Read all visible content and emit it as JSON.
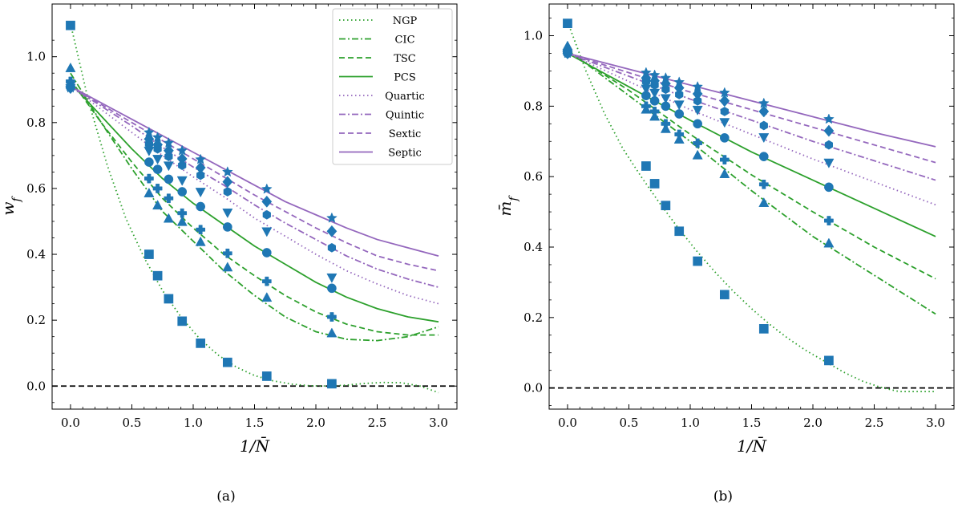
{
  "chart_data": [
    {
      "type": "line",
      "panel": "a",
      "caption": "(a)",
      "xlabel": "1/N̄",
      "ylabel": "w_f",
      "ylabel_main": "w",
      "ylabel_sub": "f",
      "xlim": [
        -0.15,
        3.15
      ],
      "ylim": [
        -0.07,
        1.16
      ],
      "xticks": [
        0.0,
        0.5,
        1.0,
        1.5,
        2.0,
        2.5,
        3.0
      ],
      "xtick_labels": [
        "0.0",
        "0.5",
        "1.0",
        "1.5",
        "2.0",
        "2.5",
        "3.0"
      ],
      "yticks": [
        0.0,
        0.2,
        0.4,
        0.6,
        0.8,
        1.0
      ],
      "ytick_labels": [
        "0.0",
        "0.2",
        "0.4",
        "0.6",
        "0.8",
        "1.0"
      ],
      "reference_line": {
        "y": 0.0,
        "style": "dashed",
        "color": "#000000"
      },
      "legend": {
        "location": "top-right"
      },
      "series": [
        {
          "name": "NGP",
          "color": "#2ca02c",
          "dash": "dotted",
          "marker": "square",
          "fit_x": [
            0,
            0.15,
            0.3,
            0.45,
            0.6,
            0.75,
            0.9,
            1.05,
            1.2,
            1.35,
            1.5,
            1.65,
            1.8,
            1.95,
            2.1,
            2.25,
            2.4,
            2.55,
            2.7,
            2.85,
            3.0
          ],
          "fit_y": [
            1.1,
            0.86,
            0.67,
            0.51,
            0.39,
            0.29,
            0.21,
            0.145,
            0.095,
            0.058,
            0.032,
            0.016,
            0.006,
            0.001,
            0.0,
            0.003,
            0.008,
            0.011,
            0.01,
            0.0,
            -0.02
          ],
          "points_x": [
            0,
            0.64,
            0.71,
            0.8,
            0.91,
            1.06,
            1.28,
            1.6,
            2.13
          ],
          "points_y": [
            1.095,
            0.4,
            0.335,
            0.265,
            0.197,
            0.13,
            0.072,
            0.03,
            0.007
          ]
        },
        {
          "name": "CIC",
          "color": "#2ca02c",
          "dash": "dashdot",
          "marker": "triangle-up",
          "fit_x": [
            0,
            0.25,
            0.5,
            0.75,
            1.0,
            1.25,
            1.5,
            1.75,
            2.0,
            2.25,
            2.5,
            2.75,
            3.0
          ],
          "fit_y": [
            0.95,
            0.8,
            0.66,
            0.53,
            0.44,
            0.35,
            0.275,
            0.21,
            0.165,
            0.142,
            0.138,
            0.15,
            0.18
          ],
          "points_x": [
            0,
            0.64,
            0.71,
            0.8,
            0.91,
            1.06,
            1.28,
            1.6,
            2.13
          ],
          "points_y": [
            0.965,
            0.585,
            0.548,
            0.508,
            0.498,
            0.437,
            0.36,
            0.268,
            0.16
          ]
        },
        {
          "name": "TSC",
          "color": "#2ca02c",
          "dash": "dashed",
          "marker": "plus",
          "fit_x": [
            0,
            0.25,
            0.5,
            0.75,
            1.0,
            1.25,
            1.5,
            1.75,
            2.0,
            2.25,
            2.5,
            2.75,
            3.0
          ],
          "fit_y": [
            0.93,
            0.8,
            0.68,
            0.57,
            0.48,
            0.4,
            0.335,
            0.275,
            0.225,
            0.188,
            0.165,
            0.155,
            0.155
          ],
          "points_x": [
            0,
            0.64,
            0.71,
            0.8,
            0.91,
            1.06,
            1.28,
            1.6,
            2.13
          ],
          "points_y": [
            0.925,
            0.63,
            0.6,
            0.57,
            0.525,
            0.475,
            0.403,
            0.318,
            0.21
          ]
        },
        {
          "name": "PCS",
          "color": "#2ca02c",
          "dash": "solid",
          "marker": "circle",
          "fit_x": [
            0,
            0.25,
            0.5,
            0.75,
            1.0,
            1.25,
            1.5,
            1.75,
            2.0,
            2.25,
            2.5,
            2.75,
            3.0
          ],
          "fit_y": [
            0.92,
            0.82,
            0.72,
            0.63,
            0.555,
            0.49,
            0.425,
            0.37,
            0.315,
            0.27,
            0.235,
            0.21,
            0.195
          ],
          "points_x": [
            0,
            0.64,
            0.71,
            0.8,
            0.91,
            1.06,
            1.28,
            1.6,
            2.13
          ],
          "points_y": [
            0.91,
            0.68,
            0.658,
            0.628,
            0.59,
            0.545,
            0.483,
            0.405,
            0.297
          ]
        },
        {
          "name": "Quartic",
          "color": "#9467bd",
          "dash": "dotted",
          "marker": "triangle-down",
          "fit_x": [
            0,
            0.25,
            0.5,
            0.75,
            1.0,
            1.25,
            1.5,
            1.75,
            2.0,
            2.25,
            2.5,
            2.75,
            3.0
          ],
          "fit_y": [
            0.91,
            0.84,
            0.77,
            0.7,
            0.635,
            0.575,
            0.51,
            0.455,
            0.4,
            0.35,
            0.31,
            0.275,
            0.25
          ],
          "points_x": [
            0,
            0.64,
            0.71,
            0.8,
            0.91,
            1.06,
            1.28,
            1.6,
            2.13
          ],
          "points_y": [
            0.905,
            0.715,
            0.69,
            0.67,
            0.625,
            0.59,
            0.527,
            0.47,
            0.33
          ]
        },
        {
          "name": "Quintic",
          "color": "#9467bd",
          "dash": "dashdot",
          "marker": "hexagon",
          "fit_x": [
            0,
            0.25,
            0.5,
            0.75,
            1.0,
            1.25,
            1.5,
            1.75,
            2.0,
            2.25,
            2.5,
            2.75,
            3.0
          ],
          "fit_y": [
            0.91,
            0.85,
            0.79,
            0.725,
            0.665,
            0.61,
            0.55,
            0.495,
            0.445,
            0.395,
            0.355,
            0.325,
            0.3
          ],
          "points_x": [
            0,
            0.64,
            0.71,
            0.8,
            0.91,
            1.06,
            1.28,
            1.6,
            2.13
          ],
          "points_y": [
            0.905,
            0.735,
            0.72,
            0.697,
            0.67,
            0.64,
            0.59,
            0.52,
            0.42
          ]
        },
        {
          "name": "Sextic",
          "color": "#9467bd",
          "dash": "dashed",
          "marker": "diamond",
          "fit_x": [
            0,
            0.25,
            0.5,
            0.75,
            1.0,
            1.25,
            1.5,
            1.75,
            2.0,
            2.25,
            2.5,
            2.75,
            3.0
          ],
          "fit_y": [
            0.91,
            0.855,
            0.8,
            0.745,
            0.69,
            0.635,
            0.58,
            0.53,
            0.48,
            0.435,
            0.395,
            0.37,
            0.35
          ],
          "points_x": [
            0,
            0.64,
            0.71,
            0.8,
            0.91,
            1.06,
            1.28,
            1.6,
            2.13
          ],
          "points_y": [
            0.905,
            0.75,
            0.733,
            0.715,
            0.69,
            0.663,
            0.62,
            0.56,
            0.47
          ]
        },
        {
          "name": "Septic",
          "color": "#9467bd",
          "dash": "solid",
          "marker": "star",
          "fit_x": [
            0,
            0.25,
            0.5,
            0.75,
            1.0,
            1.25,
            1.5,
            1.75,
            2.0,
            2.25,
            2.5,
            2.75,
            3.0
          ],
          "fit_y": [
            0.91,
            0.86,
            0.81,
            0.76,
            0.71,
            0.66,
            0.61,
            0.56,
            0.52,
            0.48,
            0.445,
            0.42,
            0.395
          ],
          "points_x": [
            0,
            0.64,
            0.71,
            0.8,
            0.91,
            1.06,
            1.28,
            1.6,
            2.13
          ],
          "points_y": [
            0.905,
            0.77,
            0.755,
            0.738,
            0.715,
            0.688,
            0.65,
            0.598,
            0.51
          ]
        }
      ]
    },
    {
      "type": "line",
      "panel": "b",
      "caption": "(b)",
      "xlabel": "1/N̄",
      "ylabel": "m̄_f",
      "ylabel_main": "m̄",
      "ylabel_sub": "f",
      "xlim": [
        -0.15,
        3.15
      ],
      "ylim": [
        -0.06,
        1.09
      ],
      "xticks": [
        0.0,
        0.5,
        1.0,
        1.5,
        2.0,
        2.5,
        3.0
      ],
      "xtick_labels": [
        "0.0",
        "0.5",
        "1.0",
        "1.5",
        "2.0",
        "2.5",
        "3.0"
      ],
      "yticks": [
        0.0,
        0.2,
        0.4,
        0.6,
        0.8,
        1.0
      ],
      "ytick_labels": [
        "0.0",
        "0.2",
        "0.4",
        "0.6",
        "0.8",
        "1.0"
      ],
      "reference_line": {
        "y": 0.0,
        "style": "dashed",
        "color": "#000000"
      },
      "series": [
        {
          "name": "NGP",
          "color": "#2ca02c",
          "dash": "dotted",
          "marker": "square",
          "fit_x": [
            0,
            0.15,
            0.3,
            0.45,
            0.6,
            0.75,
            0.9,
            1.05,
            1.2,
            1.35,
            1.5,
            1.65,
            1.8,
            1.95,
            2.1,
            2.25,
            2.4,
            2.55,
            2.7,
            2.85,
            3.0
          ],
          "fit_y": [
            1.04,
            0.9,
            0.78,
            0.68,
            0.6,
            0.525,
            0.455,
            0.39,
            0.33,
            0.275,
            0.225,
            0.18,
            0.14,
            0.105,
            0.075,
            0.045,
            0.02,
            0.002,
            -0.01,
            -0.01,
            -0.01
          ],
          "points_x": [
            0,
            0.64,
            0.71,
            0.8,
            0.91,
            1.06,
            1.28,
            1.6,
            2.13
          ],
          "points_y": [
            1.035,
            0.63,
            0.58,
            0.518,
            0.445,
            0.36,
            0.265,
            0.168,
            0.078
          ]
        },
        {
          "name": "CIC",
          "color": "#2ca02c",
          "dash": "dashdot",
          "marker": "triangle-up",
          "fit_x": [
            0,
            0.5,
            1.0,
            1.5,
            2.0,
            2.5,
            3.0
          ],
          "fit_y": [
            0.96,
            0.83,
            0.7,
            0.56,
            0.43,
            0.32,
            0.21
          ],
          "points_x": [
            0,
            0.64,
            0.71,
            0.8,
            0.91,
            1.06,
            1.28,
            1.6,
            2.13
          ],
          "points_y": [
            0.97,
            0.79,
            0.77,
            0.735,
            0.705,
            0.66,
            0.607,
            0.525,
            0.41
          ]
        },
        {
          "name": "TSC",
          "color": "#2ca02c",
          "dash": "dashed",
          "marker": "plus",
          "fit_x": [
            0,
            0.5,
            1.0,
            1.5,
            2.0,
            2.5,
            3.0
          ],
          "fit_y": [
            0.955,
            0.845,
            0.72,
            0.605,
            0.5,
            0.4,
            0.31
          ],
          "points_x": [
            0,
            0.64,
            0.71,
            0.8,
            0.91,
            1.06,
            1.28,
            1.6,
            2.13
          ],
          "points_y": [
            0.955,
            0.8,
            0.785,
            0.75,
            0.72,
            0.695,
            0.648,
            0.578,
            0.475
          ]
        },
        {
          "name": "PCS",
          "color": "#2ca02c",
          "dash": "solid",
          "marker": "circle",
          "fit_x": [
            0,
            0.5,
            1.0,
            1.5,
            2.0,
            2.5,
            3.0
          ],
          "fit_y": [
            0.95,
            0.855,
            0.76,
            0.67,
            0.59,
            0.51,
            0.43
          ],
          "points_x": [
            0,
            0.64,
            0.71,
            0.8,
            0.91,
            1.06,
            1.28,
            1.6,
            2.13
          ],
          "points_y": [
            0.95,
            0.83,
            0.815,
            0.8,
            0.778,
            0.75,
            0.71,
            0.657,
            0.57
          ]
        },
        {
          "name": "Quartic",
          "color": "#9467bd",
          "dash": "dotted",
          "marker": "triangle-down",
          "fit_x": [
            0,
            0.5,
            1.0,
            1.5,
            2.0,
            2.5,
            3.0
          ],
          "fit_y": [
            0.95,
            0.87,
            0.79,
            0.72,
            0.65,
            0.585,
            0.52
          ],
          "points_x": [
            0,
            0.64,
            0.71,
            0.8,
            0.91,
            1.06,
            1.28,
            1.6,
            2.13
          ],
          "points_y": [
            0.95,
            0.85,
            0.838,
            0.823,
            0.805,
            0.79,
            0.755,
            0.712,
            0.64
          ]
        },
        {
          "name": "Quintic",
          "color": "#9467bd",
          "dash": "dashdot",
          "marker": "hexagon",
          "fit_x": [
            0,
            0.5,
            1.0,
            1.5,
            2.0,
            2.5,
            3.0
          ],
          "fit_y": [
            0.95,
            0.885,
            0.82,
            0.76,
            0.7,
            0.645,
            0.59
          ],
          "points_x": [
            0,
            0.64,
            0.71,
            0.8,
            0.91,
            1.06,
            1.28,
            1.6,
            2.13
          ],
          "points_y": [
            0.95,
            0.87,
            0.86,
            0.848,
            0.833,
            0.815,
            0.785,
            0.745,
            0.69
          ]
        },
        {
          "name": "Sextic",
          "color": "#9467bd",
          "dash": "dashed",
          "marker": "diamond",
          "fit_x": [
            0,
            0.5,
            1.0,
            1.5,
            2.0,
            2.5,
            3.0
          ],
          "fit_y": [
            0.95,
            0.895,
            0.84,
            0.79,
            0.74,
            0.69,
            0.64
          ],
          "points_x": [
            0,
            0.64,
            0.71,
            0.8,
            0.91,
            1.06,
            1.28,
            1.6,
            2.13
          ],
          "points_y": [
            0.95,
            0.88,
            0.872,
            0.864,
            0.852,
            0.835,
            0.815,
            0.785,
            0.73
          ]
        },
        {
          "name": "Septic",
          "color": "#9467bd",
          "dash": "solid",
          "marker": "star",
          "fit_x": [
            0,
            0.5,
            1.0,
            1.5,
            2.0,
            2.5,
            3.0
          ],
          "fit_y": [
            0.95,
            0.905,
            0.86,
            0.815,
            0.77,
            0.725,
            0.685
          ],
          "points_x": [
            0,
            0.64,
            0.71,
            0.8,
            0.91,
            1.06,
            1.28,
            1.6,
            2.13
          ],
          "points_y": [
            0.95,
            0.895,
            0.888,
            0.88,
            0.868,
            0.855,
            0.838,
            0.808,
            0.763
          ]
        }
      ]
    }
  ],
  "marker_color": "#1f77b4"
}
